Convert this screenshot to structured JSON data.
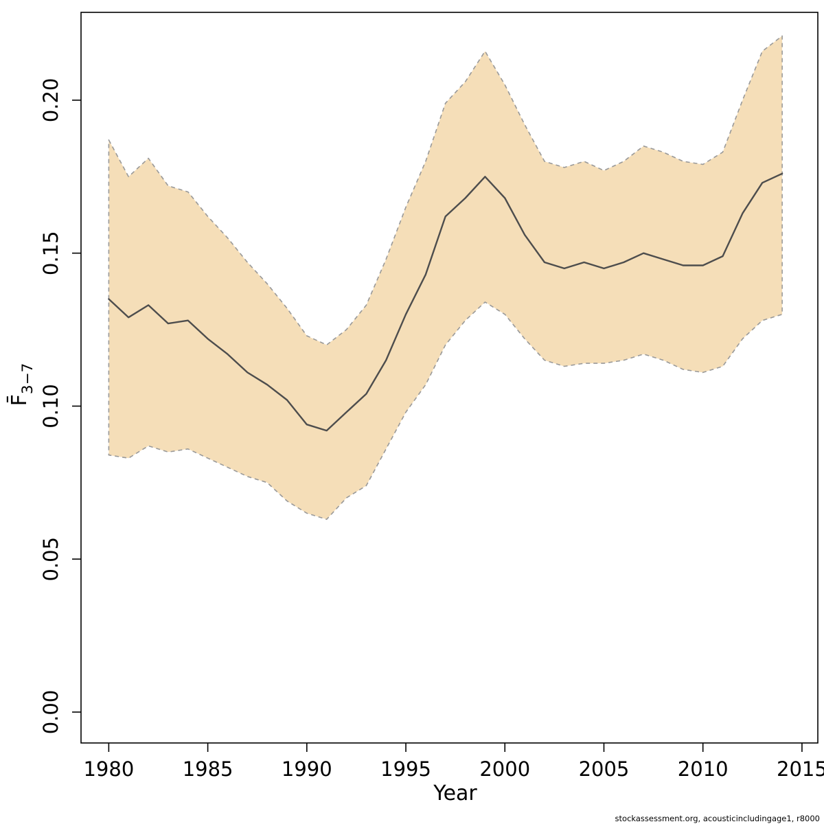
{
  "caption": "stockassessment.org, acousticincludingage1, r8000",
  "chart_data": {
    "type": "line",
    "title": "",
    "xlabel": "Year",
    "ylabel_main": "F̄",
    "ylabel_sub": "3−7",
    "x": [
      1980,
      1981,
      1982,
      1983,
      1984,
      1985,
      1986,
      1987,
      1988,
      1989,
      1990,
      1991,
      1992,
      1993,
      1994,
      1995,
      1996,
      1997,
      1998,
      1999,
      2000,
      2001,
      2002,
      2003,
      2004,
      2005,
      2006,
      2007,
      2008,
      2009,
      2010,
      2011,
      2012,
      2013,
      2014
    ],
    "series": [
      {
        "name": "mean",
        "values": [
          0.135,
          0.129,
          0.133,
          0.127,
          0.128,
          0.122,
          0.117,
          0.111,
          0.107,
          0.102,
          0.094,
          0.092,
          0.098,
          0.104,
          0.115,
          0.13,
          0.143,
          0.162,
          0.168,
          0.175,
          0.168,
          0.156,
          0.147,
          0.145,
          0.147,
          0.145,
          0.147,
          0.15,
          0.148,
          0.146,
          0.146,
          0.149,
          0.163,
          0.173,
          0.176
        ]
      },
      {
        "name": "lower_ci",
        "values": [
          0.084,
          0.083,
          0.087,
          0.085,
          0.086,
          0.083,
          0.08,
          0.077,
          0.075,
          0.069,
          0.065,
          0.063,
          0.07,
          0.074,
          0.086,
          0.098,
          0.107,
          0.12,
          0.128,
          0.134,
          0.13,
          0.122,
          0.115,
          0.113,
          0.114,
          0.114,
          0.115,
          0.117,
          0.115,
          0.112,
          0.111,
          0.113,
          0.122,
          0.128,
          0.13
        ]
      },
      {
        "name": "upper_ci",
        "values": [
          0.187,
          0.175,
          0.181,
          0.172,
          0.17,
          0.162,
          0.155,
          0.147,
          0.14,
          0.132,
          0.123,
          0.12,
          0.125,
          0.133,
          0.148,
          0.165,
          0.18,
          0.199,
          0.206,
          0.216,
          0.205,
          0.192,
          0.18,
          0.178,
          0.18,
          0.177,
          0.18,
          0.185,
          0.183,
          0.18,
          0.179,
          0.183,
          0.2,
          0.216,
          0.221
        ]
      }
    ],
    "xlim": [
      1978.6,
      2015.8
    ],
    "ylim": [
      -0.0101,
      0.2287
    ],
    "xticks": [
      1980,
      1985,
      1990,
      1995,
      2000,
      2005,
      2010,
      2015
    ],
    "xtick_labels": [
      "1980",
      "1985",
      "1990",
      "1995",
      "2000",
      "2005",
      "2010",
      "2015"
    ],
    "yticks": [
      0.0,
      0.05,
      0.1,
      0.15,
      0.2
    ],
    "ytick_labels": [
      "0.00",
      "0.05",
      "0.10",
      "0.15",
      "0.20"
    ],
    "grid": false,
    "legend": false,
    "colors": {
      "band_fill": "#f5deb8",
      "band_border": "#999999",
      "line": "#4d4d4d",
      "axis": "#000000"
    }
  }
}
